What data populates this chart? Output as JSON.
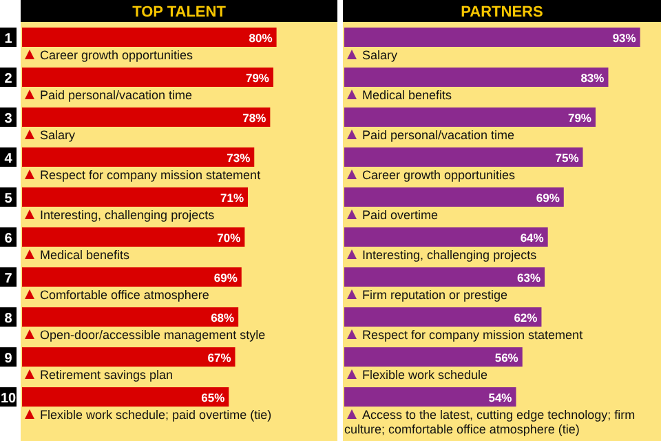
{
  "chart_data": [
    {
      "type": "bar",
      "orientation": "horizontal",
      "title": "TOP TALENT",
      "categories": [
        "Career growth opportunities",
        "Paid personal/vacation time",
        "Salary",
        "Respect for company mission statement",
        "Interesting, challenging projects",
        "Medical benefits",
        "Comfortable office atmosphere",
        "Open-door/accessible management style",
        "Retirement savings plan",
        "Flexible work schedule; paid overtime (tie)"
      ],
      "values": [
        80,
        79,
        78,
        73,
        71,
        70,
        69,
        68,
        67,
        65
      ],
      "value_labels": [
        "80%",
        "79%",
        "78%",
        "73%",
        "71%",
        "70%",
        "69%",
        "68%",
        "67%",
        "65%"
      ],
      "color": "#d90000",
      "annotations": [
        "1",
        "2",
        "3",
        "4",
        "5",
        "6",
        "7",
        "8",
        "9",
        "10"
      ]
    },
    {
      "type": "bar",
      "orientation": "horizontal",
      "title": "PARTNERS",
      "categories": [
        "Salary",
        "Medical benefits",
        "Paid personal/vacation time",
        "Career growth opportunities",
        "Paid overtime",
        "Interesting, challenging projects",
        "Firm reputation or prestige",
        "Respect for company mission statement",
        "Flexible work schedule",
        "Access to the latest, cutting edge technology; firm culture; comfortable office atmosphere (tie)"
      ],
      "values": [
        93,
        83,
        79,
        75,
        69,
        64,
        63,
        62,
        56,
        54
      ],
      "value_labels": [
        "93%",
        "83%",
        "79%",
        "75%",
        "69%",
        "64%",
        "63%",
        "62%",
        "56%",
        "54%"
      ],
      "color": "#8b2a8f"
    }
  ]
}
